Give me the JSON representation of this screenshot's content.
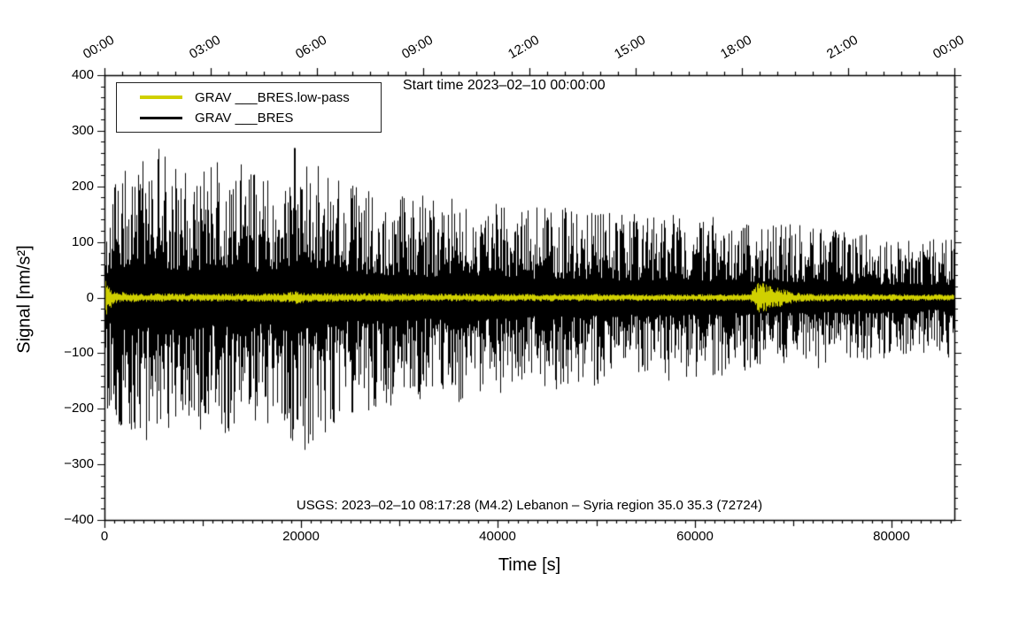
{
  "chart_data": {
    "type": "line",
    "title": "Start time 2023–02–10 00:00:00",
    "xlabel": "Time [s]",
    "ylabel": "Signal [nm/s²]",
    "xlim": [
      0,
      86400
    ],
    "ylim": [
      -400,
      400
    ],
    "grid": false,
    "legend_position": "top-left",
    "x_ticks": [
      0,
      20000,
      40000,
      60000,
      80000
    ],
    "x_tick_labels": [
      "0",
      "20000",
      "40000",
      "60000",
      "80000"
    ],
    "y_ticks": [
      400,
      300,
      200,
      100,
      0,
      -100,
      -200,
      -300,
      -400
    ],
    "y_tick_labels": [
      "400",
      "300",
      "200",
      "100",
      "0",
      "−100",
      "−200",
      "−300",
      "−400"
    ],
    "top_axis": {
      "ticks_s": [
        0,
        10800,
        21600,
        32400,
        43200,
        54000,
        64800,
        75600,
        86400
      ],
      "labels": [
        "00:00",
        "03:00",
        "06:00",
        "09:00",
        "12:00",
        "15:00",
        "18:00",
        "21:00",
        "00:00"
      ]
    },
    "minor_ticks": {
      "x_s": 1000,
      "y": 20,
      "top_s": 1800
    },
    "annotation": "USGS: 2023–02–10 08:17:28 (M4.2) Lebanon – Syria region 35.0 35.3 (72724)",
    "noise_seed": 7,
    "series": [
      {
        "name": "GRAV ___BRES.low-pass",
        "color": "#d0d000",
        "envelope_x": [
          0,
          800,
          3000,
          10000,
          18000,
          19500,
          21000,
          40000,
          60000,
          65500,
          66500,
          68000,
          69500,
          71000,
          80000,
          86400
        ],
        "envelope_amp": [
          45,
          12,
          8,
          7,
          8,
          12,
          8,
          7,
          6,
          7,
          28,
          22,
          12,
          7,
          6,
          6
        ]
      },
      {
        "name": "GRAV ___BRES",
        "color": "#000000",
        "envelope_x": [
          0,
          2000,
          5000,
          8000,
          12000,
          16000,
          20000,
          24000,
          28000,
          32000,
          36000,
          40000,
          44000,
          48000,
          52000,
          56000,
          60000,
          64000,
          68000,
          72000,
          76000,
          80000,
          83000,
          86400
        ],
        "envelope_amp": [
          210,
          240,
          275,
          230,
          250,
          230,
          285,
          215,
          200,
          185,
          190,
          175,
          165,
          170,
          150,
          155,
          150,
          140,
          130,
          135,
          120,
          110,
          100,
          115
        ]
      }
    ]
  }
}
